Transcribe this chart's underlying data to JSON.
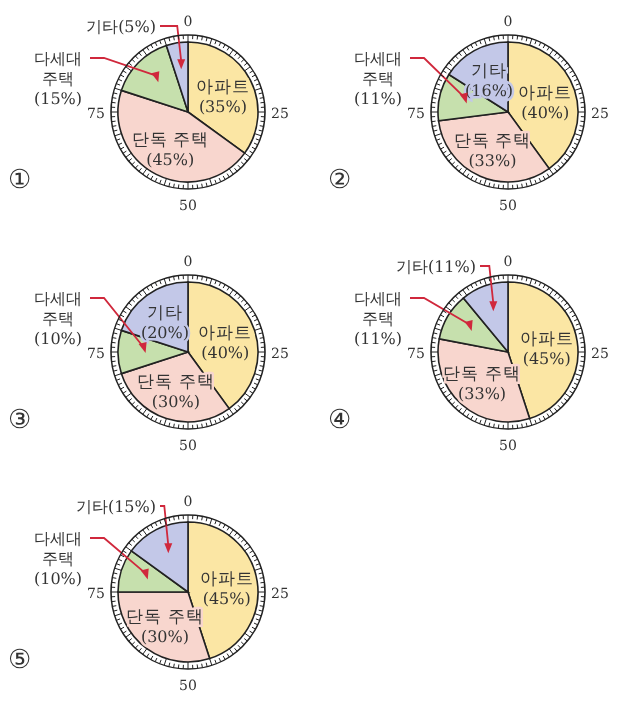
{
  "chart_data": [
    {
      "type": "pie",
      "title": "①",
      "categories": [
        "아파트",
        "단독 주택",
        "다세대 주택",
        "기타"
      ],
      "values": [
        35,
        45,
        15,
        5
      ],
      "value_labels": [
        "(35%)",
        "(45%)",
        "(15%)",
        "(5%)"
      ],
      "colors": [
        "#fbe6a4",
        "#f8d6ce",
        "#c6e0ad",
        "#c3c8e8"
      ],
      "legend": "left",
      "annotations": [
        "0",
        "25",
        "50",
        "75"
      ]
    },
    {
      "type": "pie",
      "title": "②",
      "categories": [
        "아파트",
        "단독 주택",
        "다세대 주택",
        "기타"
      ],
      "values": [
        40,
        33,
        11,
        16
      ],
      "value_labels": [
        "(40%)",
        "(33%)",
        "(11%)",
        "(16%)"
      ],
      "colors": [
        "#fbe6a4",
        "#f8d6ce",
        "#c6e0ad",
        "#c3c8e8"
      ],
      "legend": "left",
      "annotations": [
        "0",
        "25",
        "50",
        "75"
      ]
    },
    {
      "type": "pie",
      "title": "③",
      "categories": [
        "아파트",
        "단독 주택",
        "다세대 주택",
        "기타"
      ],
      "values": [
        40,
        30,
        10,
        20
      ],
      "value_labels": [
        "(40%)",
        "(30%)",
        "(10%)",
        "(20%)"
      ],
      "colors": [
        "#fbe6a4",
        "#f8d6ce",
        "#c6e0ad",
        "#c3c8e8"
      ],
      "legend": "left",
      "annotations": [
        "0",
        "25",
        "50",
        "75"
      ]
    },
    {
      "type": "pie",
      "title": "④",
      "categories": [
        "아파트",
        "단독 주택",
        "다세대 주택",
        "기타"
      ],
      "values": [
        45,
        33,
        11,
        11
      ],
      "value_labels": [
        "(45%)",
        "(33%)",
        "(11%)",
        "(11%)"
      ],
      "colors": [
        "#fbe6a4",
        "#f8d6ce",
        "#c6e0ad",
        "#c3c8e8"
      ],
      "legend": "left",
      "annotations": [
        "0",
        "25",
        "50",
        "75"
      ]
    },
    {
      "type": "pie",
      "title": "⑤",
      "categories": [
        "아파트",
        "단독 주택",
        "다세대 주택",
        "기타"
      ],
      "values": [
        45,
        30,
        10,
        15
      ],
      "value_labels": [
        "(45%)",
        "(30%)",
        "(10%)",
        "(15%)"
      ],
      "colors": [
        "#fbe6a4",
        "#f8d6ce",
        "#c6e0ad",
        "#c3c8e8"
      ],
      "legend": "left",
      "annotations": [
        "0",
        "25",
        "50",
        "75"
      ]
    }
  ]
}
